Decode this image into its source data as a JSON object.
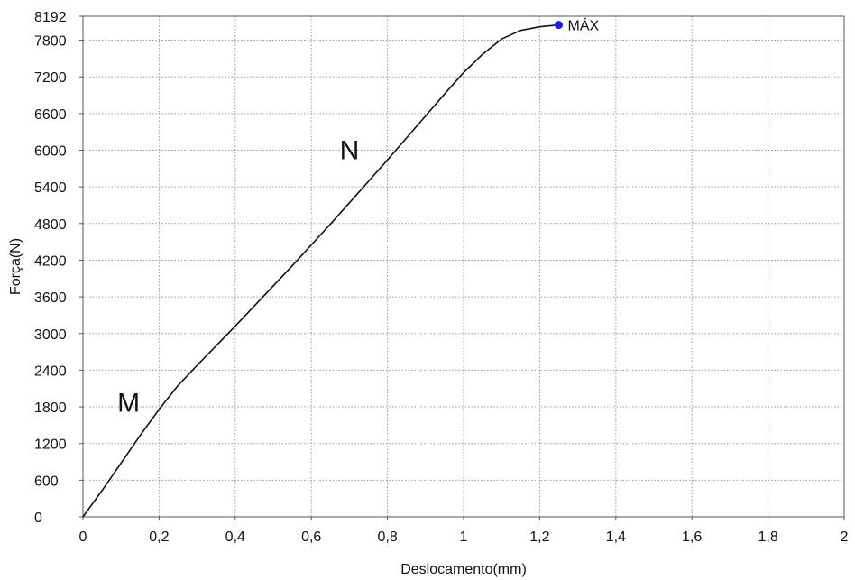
{
  "chart_data": {
    "type": "line",
    "title": "",
    "xlabel": "Deslocamento(mm)",
    "ylabel": "Força(N)",
    "xlim": [
      0,
      2
    ],
    "ylim": [
      0,
      8192
    ],
    "grid": true,
    "x_ticks": [
      0,
      0.2,
      0.4,
      0.6,
      0.8,
      1,
      1.2,
      1.4,
      1.6,
      1.8,
      2
    ],
    "x_tick_labels": [
      "0",
      "0,2",
      "0,4",
      "0,6",
      "0,8",
      "1",
      "1,2",
      "1,4",
      "1,6",
      "1,8",
      "2"
    ],
    "y_ticks": [
      0,
      600,
      1200,
      1800,
      2400,
      3000,
      3600,
      4200,
      4800,
      5400,
      6000,
      6600,
      7200,
      7800,
      8192
    ],
    "y_tick_labels": [
      "0",
      "600",
      "1200",
      "1800",
      "2400",
      "3000",
      "3600",
      "4200",
      "4800",
      "5400",
      "6000",
      "6600",
      "7200",
      "7800",
      "8192"
    ],
    "series": [
      {
        "x": [
          0,
          0.05,
          0.1,
          0.15,
          0.2,
          0.25,
          0.3,
          0.35,
          0.4,
          0.45,
          0.5,
          0.55,
          0.6,
          0.65,
          0.7,
          0.75,
          0.8,
          0.85,
          0.9,
          0.95,
          1.0,
          1.05,
          1.1,
          1.15,
          1.2,
          1.25
        ],
        "y": [
          0,
          430,
          880,
          1330,
          1760,
          2150,
          2480,
          2800,
          3120,
          3450,
          3780,
          4110,
          4450,
          4790,
          5140,
          5490,
          5840,
          6200,
          6560,
          6920,
          7270,
          7570,
          7820,
          7960,
          8020,
          8050
        ],
        "color": "#111111"
      }
    ],
    "annotations": [
      {
        "text": "M",
        "x": 0.12,
        "y": 1720
      },
      {
        "text": "N",
        "x": 0.7,
        "y": 5850
      }
    ],
    "max_point": {
      "label": "MÁX",
      "x": 1.25,
      "y": 8050,
      "color": "#1a1aff"
    }
  }
}
